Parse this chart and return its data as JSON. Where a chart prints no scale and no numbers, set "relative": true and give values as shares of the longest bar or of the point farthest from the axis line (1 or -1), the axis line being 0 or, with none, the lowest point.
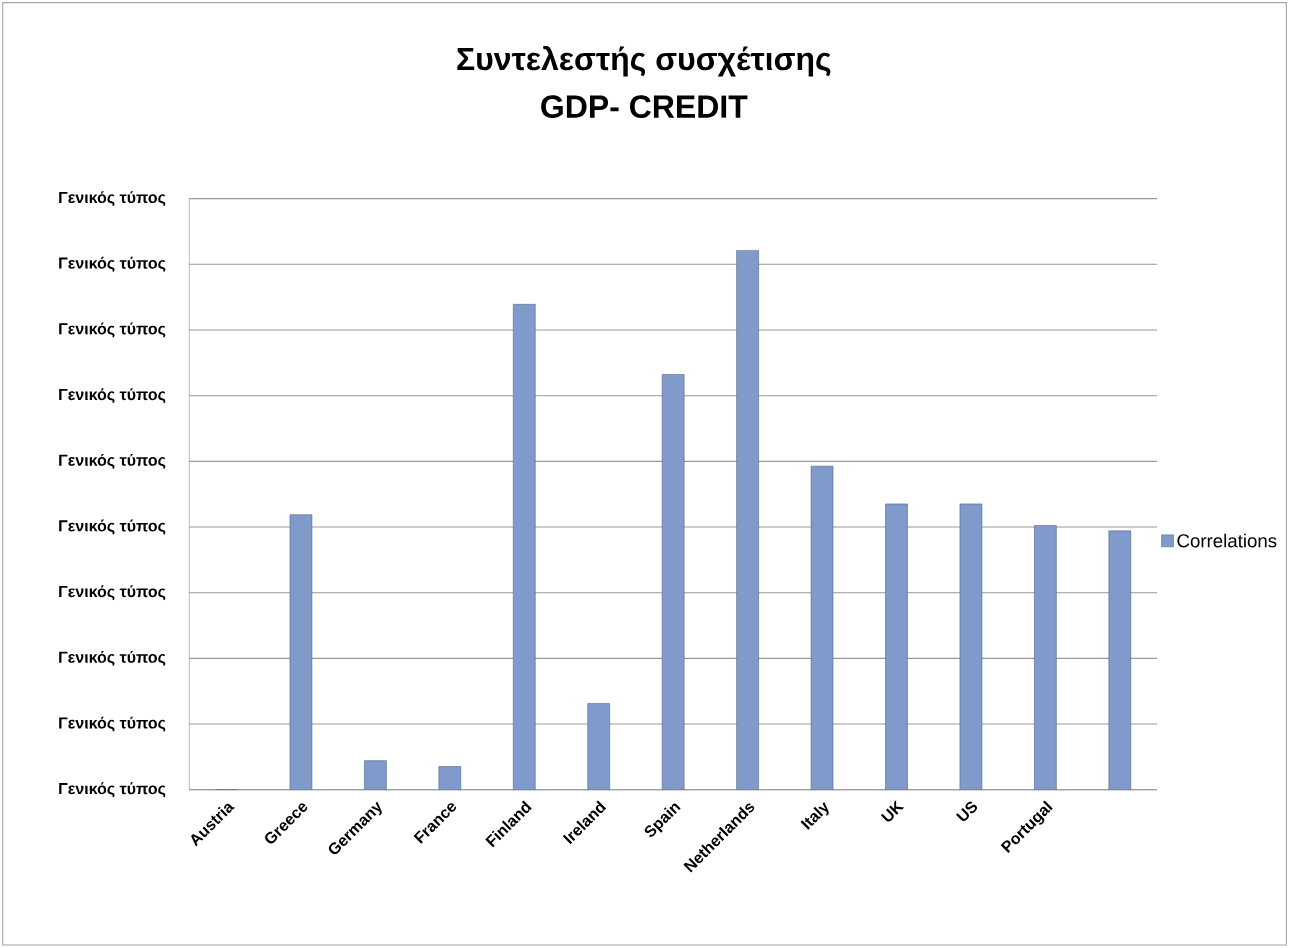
{
  "chart_data": {
    "type": "bar",
    "title": "Συντελεστής συσχέτισης",
    "subtitle": "GDP- CREDIT",
    "categories": [
      "Austria",
      "Greece",
      "Germany",
      "France",
      "Finland",
      "Ireland",
      "Spain",
      "Netherlands",
      "Italy",
      "UK",
      "US",
      "Portugal",
      null
    ],
    "series": [
      {
        "name": "Correlations",
        "color": "#7f9acb",
        "values": [
          0,
          0.51,
          0.054,
          0.043,
          0.9,
          0.16,
          0.77,
          1,
          0.6,
          0.53,
          0.53,
          0.49,
          0.48
        ]
      }
    ],
    "relative": true,
    "annotations": [
      "Γενικός τύπος",
      "Γενικός τύπος",
      "Γενικός τύπος",
      "Γενικός τύπος",
      "Γενικός τύπος",
      "Γενικός τύπος",
      "Γενικός τύπος",
      "Γενικός τύπος",
      "Γενικός τύπος",
      "Γενικός τύπος"
    ],
    "grid": "y",
    "legend": "right"
  }
}
